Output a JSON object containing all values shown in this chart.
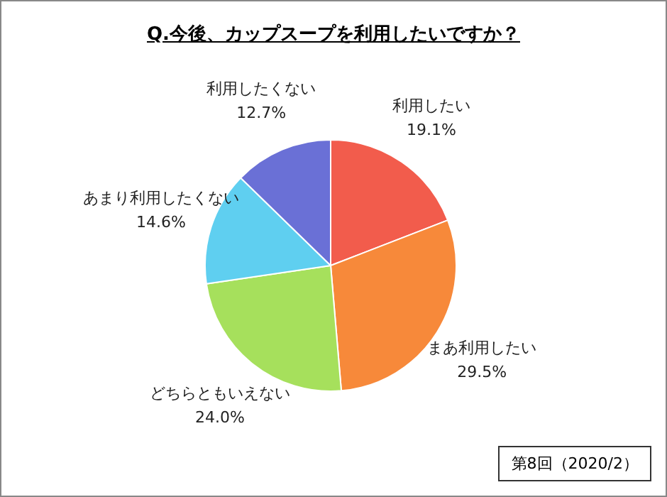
{
  "chart_data": {
    "type": "pie",
    "title": "Q.今後、カップスープを利用したいですか？",
    "categories": [
      "利用したい",
      "まあ利用したい",
      "どちらともいえない",
      "あまり利用したくない",
      "利用したくない"
    ],
    "values": [
      19.1,
      29.5,
      24.0,
      14.6,
      12.7
    ],
    "value_labels": [
      "19.1%",
      "29.5%",
      "24.0%",
      "14.6%",
      "12.7%"
    ],
    "colors": [
      "#f25c4c",
      "#f7893a",
      "#a6e05c",
      "#5fcff0",
      "#6a70d6"
    ],
    "legend": false,
    "annotations": [
      "第8回（2020/2）"
    ]
  }
}
